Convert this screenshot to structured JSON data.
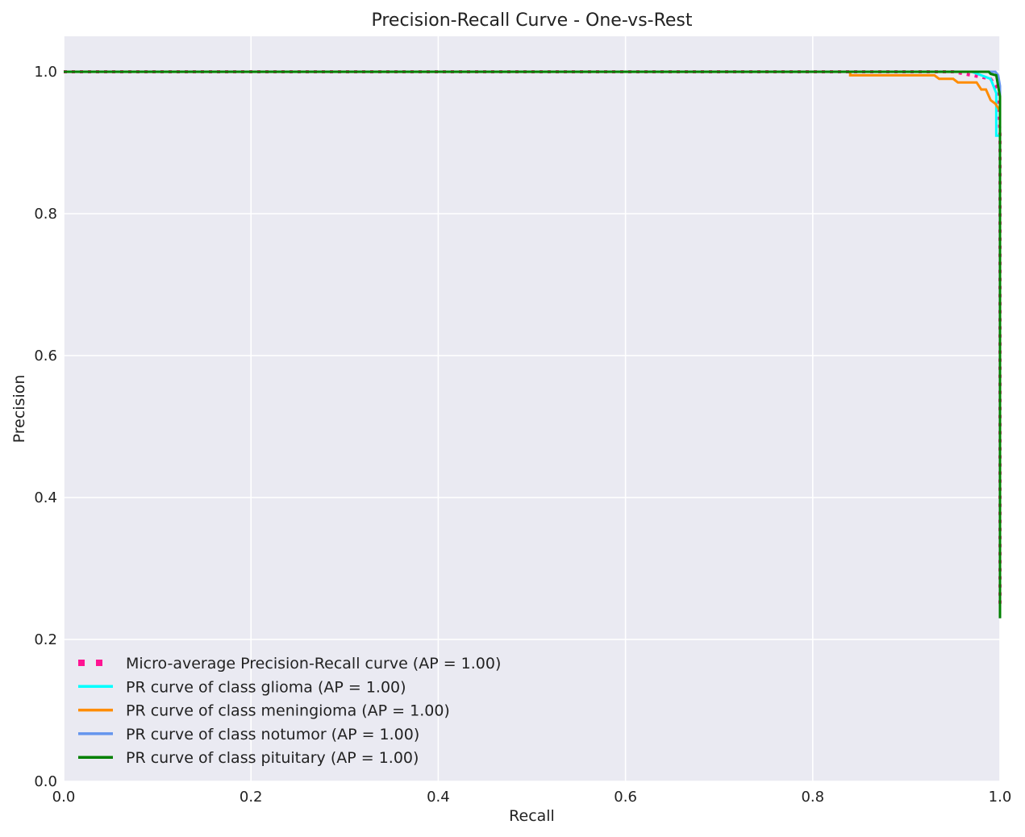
{
  "chart_data": {
    "type": "line",
    "title": "Precision-Recall Curve - One-vs-Rest",
    "xlabel": "Recall",
    "ylabel": "Precision",
    "xlim": [
      0.0,
      1.0
    ],
    "ylim": [
      0.0,
      1.05
    ],
    "xticks": [
      "0.0",
      "0.2",
      "0.4",
      "0.6",
      "0.8",
      "1.0"
    ],
    "yticks": [
      "0.0",
      "0.2",
      "0.4",
      "0.6",
      "0.8",
      "1.0"
    ],
    "grid": true,
    "legend_position": "lower-left",
    "background": "#eaeaf2",
    "series": [
      {
        "name": "Micro-average Precision-Recall curve (AP = 1.00)",
        "color": "#ff1493",
        "style": "dotted",
        "x": [
          0.0,
          0.95,
          0.99,
          0.998,
          1.0,
          1.0
        ],
        "y": [
          1.0,
          1.0,
          0.99,
          0.975,
          0.91,
          0.25
        ]
      },
      {
        "name": "PR curve of class glioma (AP = 1.00)",
        "color": "#00ffff",
        "style": "solid",
        "x": [
          0.0,
          0.97,
          0.99,
          0.996,
          0.996,
          1.0,
          1.0
        ],
        "y": [
          1.0,
          1.0,
          0.99,
          0.97,
          0.91,
          0.91,
          0.23
        ]
      },
      {
        "name": "PR curve of class meningioma (AP = 1.00)",
        "color": "#ff8c00",
        "style": "solid",
        "x": [
          0.0,
          0.84,
          0.84,
          0.93,
          0.935,
          0.95,
          0.955,
          0.975,
          0.98,
          0.985,
          0.99,
          0.995,
          1.0,
          1.0
        ],
        "y": [
          1.0,
          1.0,
          0.995,
          0.995,
          0.99,
          0.99,
          0.985,
          0.985,
          0.975,
          0.975,
          0.96,
          0.955,
          0.945,
          0.23
        ]
      },
      {
        "name": "PR curve of class notumor (AP = 1.00)",
        "color": "#6495ed",
        "style": "solid",
        "x": [
          0.0,
          0.995,
          0.998,
          1.0,
          1.0
        ],
        "y": [
          1.0,
          1.0,
          0.995,
          0.98,
          0.23
        ]
      },
      {
        "name": "PR curve of class pituitary (AP = 1.00)",
        "color": "#008000",
        "style": "solid",
        "x": [
          0.0,
          0.988,
          0.99,
          0.996,
          0.998,
          1.0,
          1.0
        ],
        "y": [
          1.0,
          1.0,
          0.997,
          0.995,
          0.98,
          0.965,
          0.23
        ]
      }
    ]
  }
}
